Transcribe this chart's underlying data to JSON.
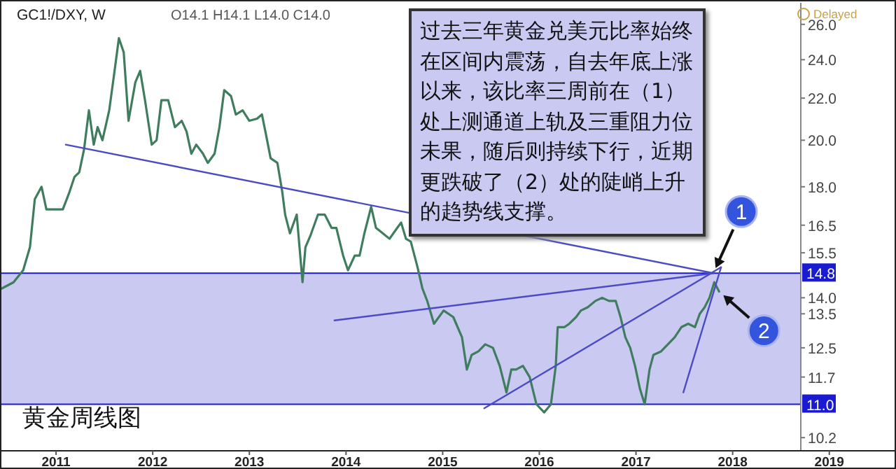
{
  "chart_data": {
    "type": "line",
    "title": "GC1!/DXY, W",
    "subtitle": "O14.1 H14.1 L14.0 C14.0",
    "annotations": [
      "Delayed",
      "过去三年黄金兑美元比率始终在区间内震荡，自去年底上涨以来，该比率三周前在（1）处上测通道上轨及三重阻力位未果，随后则持续下行，近期更跌破了（2）处的陡峭上升的趋势线支撑。",
      "黄金周线图",
      {
        "text": "1",
        "x": 2017.8,
        "y": 14.8
      },
      {
        "text": "2",
        "x": 2017.86,
        "y": 14.2
      }
    ],
    "log": "y",
    "xlim": [
      2010.42,
      2019.69
    ],
    "ylim": [
      9.9,
      27.3
    ],
    "xticks": [
      2011,
      2012,
      2013,
      2014,
      2015,
      2016,
      2017,
      2018,
      2019
    ],
    "yticks": [
      {
        "value": 26,
        "label": "26.0"
      },
      {
        "value": 24,
        "label": "24.0"
      },
      {
        "value": 22,
        "label": "22.0"
      },
      {
        "value": 20,
        "label": "20.0"
      },
      {
        "value": 18,
        "label": "18.0"
      },
      16.5,
      15.5,
      {
        "value": 14,
        "label": "14.0"
      },
      13.5,
      12.5,
      11.7,
      10.2
    ],
    "bands": [
      {
        "axis": "y",
        "from": 11.0,
        "to": 14.8,
        "color": "#c9c9f2"
      }
    ],
    "ref_lines": [
      {
        "axis": "y",
        "value": 14.8,
        "label": "14.8",
        "color": "#1a1ad0"
      },
      {
        "axis": "y",
        "value": 11.0,
        "label": "11.0",
        "color": "#1a1ad0"
      }
    ],
    "series": [
      {
        "color": "#3f7d5e",
        "x": [
          2010.44,
          2010.56,
          2010.66,
          2010.73,
          2010.78,
          2010.85,
          2010.9,
          2011.0,
          2011.07,
          2011.14,
          2011.19,
          2011.24,
          2011.29,
          2011.34,
          2011.39,
          2011.43,
          2011.48,
          2011.55,
          2011.6,
          2011.65,
          2011.7,
          2011.75,
          2011.82,
          2011.87,
          2011.92,
          2011.99,
          2012.04,
          2012.09,
          2012.16,
          2012.23,
          2012.3,
          2012.35,
          2012.4,
          2012.45,
          2012.52,
          2012.57,
          2012.64,
          2012.69,
          2012.74,
          2012.81,
          2012.86,
          2012.93,
          2013.0,
          2013.08,
          2013.13,
          2013.17,
          2013.22,
          2013.29,
          2013.34,
          2013.37,
          2013.42,
          2013.49,
          2013.55,
          2013.58,
          2013.63,
          2013.71,
          2013.78,
          2013.85,
          2013.9,
          2013.97,
          2014.02,
          2014.09,
          2014.14,
          2014.19,
          2014.26,
          2014.31,
          2014.38,
          2014.45,
          2014.53,
          2014.57,
          2014.62,
          2014.67,
          2014.74,
          2014.79,
          2014.84,
          2014.91,
          2015.01,
          2015.11,
          2015.2,
          2015.25,
          2015.3,
          2015.37,
          2015.44,
          2015.52,
          2015.59,
          2015.66,
          2015.71,
          2015.76,
          2015.83,
          2015.9,
          2015.97,
          2016.05,
          2016.12,
          2016.17,
          2016.19,
          2016.26,
          2016.31,
          2016.38,
          2016.43,
          2016.5,
          2016.58,
          2016.65,
          2016.72,
          2016.79,
          2016.84,
          2016.89,
          2016.94,
          2016.99,
          2017.04,
          2017.09,
          2017.14,
          2017.18,
          2017.26,
          2017.33,
          2017.4,
          2017.47,
          2017.54,
          2017.61,
          2017.66,
          2017.71,
          2017.76,
          2017.81,
          2017.86
        ],
        "values": [
          14.3,
          14.5,
          14.9,
          15.7,
          17.5,
          18.0,
          17.1,
          17.1,
          17.1,
          17.8,
          18.4,
          18.6,
          19.6,
          21.4,
          19.8,
          20.6,
          20.0,
          21.4,
          23.2,
          25.2,
          24.4,
          20.9,
          22.8,
          23.4,
          21.9,
          19.8,
          20.0,
          21.9,
          21.9,
          20.6,
          20.9,
          20.4,
          19.4,
          19.8,
          19.4,
          19.0,
          19.4,
          20.6,
          22.4,
          22.1,
          21.2,
          21.4,
          20.9,
          21.0,
          21.2,
          20.3,
          19.2,
          19.0,
          17.8,
          16.9,
          16.2,
          16.9,
          14.5,
          15.7,
          16.1,
          16.9,
          16.9,
          16.4,
          16.4,
          15.4,
          14.9,
          15.4,
          15.4,
          16.2,
          17.2,
          16.4,
          16.2,
          16.0,
          16.4,
          16.6,
          16.0,
          15.9,
          15.0,
          14.3,
          13.9,
          13.2,
          13.6,
          13.4,
          12.8,
          11.9,
          12.3,
          12.4,
          12.6,
          12.5,
          12.0,
          11.3,
          11.9,
          11.9,
          12.0,
          11.7,
          11.0,
          10.8,
          11.0,
          12.0,
          13.1,
          13.1,
          13.2,
          13.4,
          13.6,
          13.7,
          13.9,
          14.0,
          13.9,
          13.9,
          13.4,
          12.8,
          12.5,
          12.0,
          11.4,
          11.0,
          11.9,
          12.3,
          12.4,
          12.6,
          12.8,
          13.1,
          13.2,
          13.1,
          13.5,
          13.7,
          14.0,
          14.5,
          14.2
        ]
      },
      {
        "color": "#4b4bc4",
        "x": [
          2011.1,
          2017.8
        ],
        "values": [
          19.8,
          14.8
        ]
      },
      {
        "color": "#4b4bc4",
        "x": [
          2013.88,
          2017.8
        ],
        "values": [
          13.3,
          14.8
        ]
      },
      {
        "color": "#4b4bc4",
        "x": [
          2015.43,
          2017.88
        ],
        "values": [
          10.9,
          15.0
        ]
      },
      {
        "color": "#4b4bc4",
        "x": [
          2017.49,
          2017.88
        ],
        "values": [
          11.3,
          15.0
        ]
      }
    ]
  }
}
